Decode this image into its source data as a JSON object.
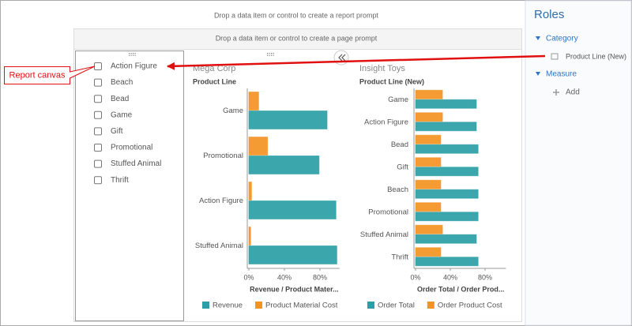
{
  "report_prompt": "Drop a data item or control to create a report prompt",
  "page_prompt": "Drop a data item or control to create a page prompt",
  "callout": "Report canvas",
  "list": {
    "items": [
      "Action Figure",
      "Beach",
      "Bead",
      "Game",
      "Gift",
      "Promotional",
      "Stuffed Animal",
      "Thrift"
    ]
  },
  "chart_data": [
    {
      "type": "bar",
      "orientation": "horizontal",
      "title": "Mega Corp",
      "y_label": "Product Line",
      "x_label": "Revenue / Product Mater...",
      "categories": [
        "Game",
        "Promotional",
        "Action Figure",
        "Stuffed Animal"
      ],
      "series": [
        {
          "name": "Revenue",
          "color": "#2b9ea6",
          "values": [
            88,
            79,
            98,
            99
          ]
        },
        {
          "name": "Product Material Cost",
          "color": "#f39322",
          "values": [
            11,
            21,
            3,
            2
          ]
        }
      ],
      "xlim": [
        0,
        102
      ],
      "xticks": [
        {
          "value": 0,
          "label": "0%"
        },
        {
          "value": 40,
          "label": "40%"
        },
        {
          "value": 80,
          "label": "80%"
        }
      ],
      "legend": "bottom"
    },
    {
      "type": "bar",
      "orientation": "horizontal",
      "title": "Insight Toys",
      "y_label": "Product Line (New)",
      "x_label": "Order Total / Order Prod...",
      "categories": [
        "Game",
        "Action Figure",
        "Bead",
        "Gift",
        "Beach",
        "Promotional",
        "Stuffed Animal",
        "Thrift"
      ],
      "series": [
        {
          "name": "Order Total",
          "color": "#2b9ea6",
          "values": [
            70,
            70,
            72,
            72,
            72,
            72,
            70,
            72
          ]
        },
        {
          "name": "Order Product Cost",
          "color": "#f39322",
          "values": [
            31,
            31,
            29,
            29,
            29,
            29,
            31,
            29
          ]
        }
      ],
      "xlim": [
        0,
        104
      ],
      "xticks": [
        {
          "value": 0,
          "label": "0%"
        },
        {
          "value": 40,
          "label": "40%"
        },
        {
          "value": 80,
          "label": "80%"
        }
      ],
      "legend": "bottom"
    }
  ],
  "roles": {
    "title": "Roles",
    "sections": [
      {
        "label": "Category",
        "items": [
          "Product Line (New)"
        ]
      },
      {
        "label": "Measure",
        "items": [
          "Add"
        ]
      }
    ]
  }
}
